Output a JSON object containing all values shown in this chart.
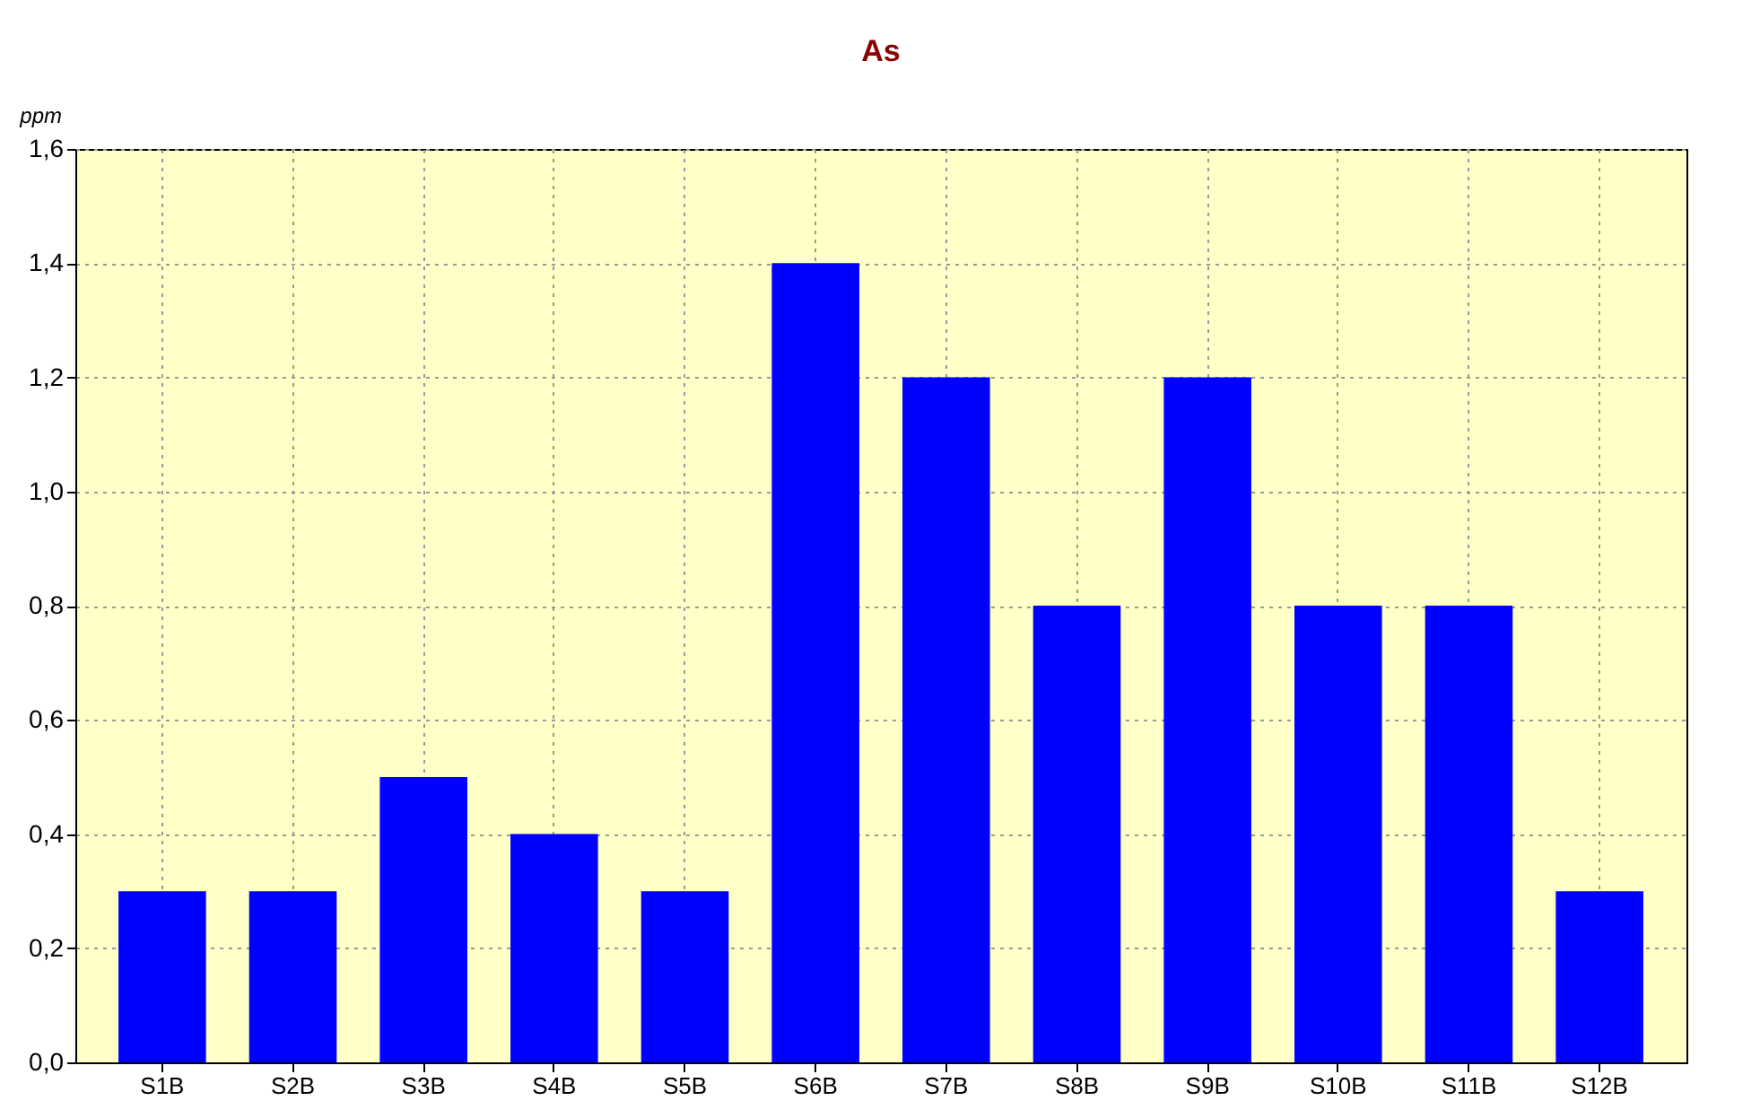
{
  "chart_data": {
    "type": "bar",
    "title": "As",
    "ylabel": "ppm",
    "categories": [
      "S1B",
      "S2B",
      "S3B",
      "S4B",
      "S5B",
      "S6B",
      "S7B",
      "S8B",
      "S9B",
      "S10B",
      "S11B",
      "S12B"
    ],
    "values": [
      0.3,
      0.3,
      0.5,
      0.4,
      0.3,
      1.4,
      1.2,
      0.8,
      1.2,
      0.8,
      0.8,
      0.3
    ],
    "color": "#0000ff",
    "ylim": [
      0,
      1.6
    ],
    "yticks": [
      {
        "value": 0,
        "label": "0,0"
      },
      {
        "value": 0.2,
        "label": "0,2"
      },
      {
        "value": 0.4,
        "label": "0,4"
      },
      {
        "value": 0.6,
        "label": "0,6"
      },
      {
        "value": 0.8,
        "label": "0,8"
      },
      {
        "value": 1.0,
        "label": "1,0"
      },
      {
        "value": 1.2,
        "label": "1,2"
      },
      {
        "value": 1.4,
        "label": "1,4"
      },
      {
        "value": 1.6,
        "label": "1,6"
      }
    ],
    "grid": true
  }
}
